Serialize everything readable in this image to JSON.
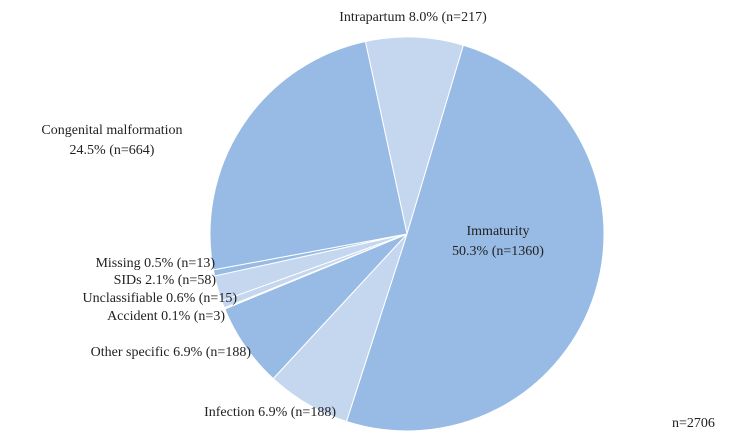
{
  "chart_data": {
    "type": "pie",
    "categories": [
      "Intrapartum",
      "Immaturity",
      "Infection",
      "Other specific",
      "Accident",
      "Unclassifiable",
      "SIDs",
      "Missing",
      "Congenital malformation"
    ],
    "values": [
      8.0,
      50.3,
      6.9,
      6.9,
      0.1,
      0.6,
      2.1,
      0.5,
      24.5
    ],
    "value_labels": [
      "8.0%",
      "50.3%",
      "6.9%",
      "6.9%",
      "0.1%",
      "0.6%",
      "2.1%",
      "0.5%",
      "24.5%"
    ],
    "count_labels": [
      "(n=217)",
      "(n=1360)",
      "(n=188)",
      "(n=188)",
      "(n=3)",
      "(n=15)",
      "(n=58)",
      "(n=13)",
      "(n=664)"
    ],
    "colors": [
      "#c5d6ef",
      "#97bbe4",
      "#c5d6ef",
      "#97bbe4",
      "#c5d6ef",
      "#c5d6ef",
      "#c5d6ef",
      "#97bbe4",
      "#97bbe4"
    ],
    "annotation": "n=2706"
  }
}
